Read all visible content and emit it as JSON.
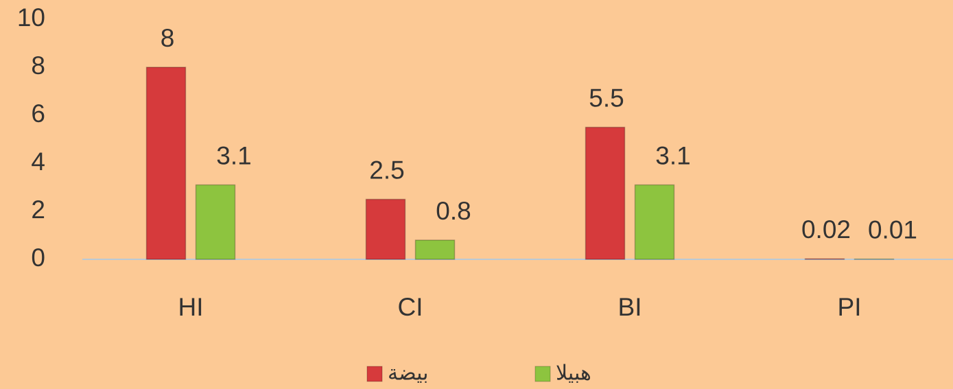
{
  "chart_data": {
    "type": "bar",
    "categories": [
      "HI",
      "CI",
      "BI",
      "PI"
    ],
    "series": [
      {
        "name": "بيضة",
        "color": "#d63a3c",
        "values": [
          8,
          2.5,
          5.5,
          0.02
        ]
      },
      {
        "name": "هبيلا",
        "color": "#8dc43f",
        "values": [
          3.1,
          0.8,
          3.1,
          0.01
        ]
      }
    ],
    "ylim": [
      0,
      10
    ],
    "yticks": [
      0,
      2,
      4,
      6,
      8,
      10
    ],
    "grid": false,
    "legend": "bottom"
  }
}
